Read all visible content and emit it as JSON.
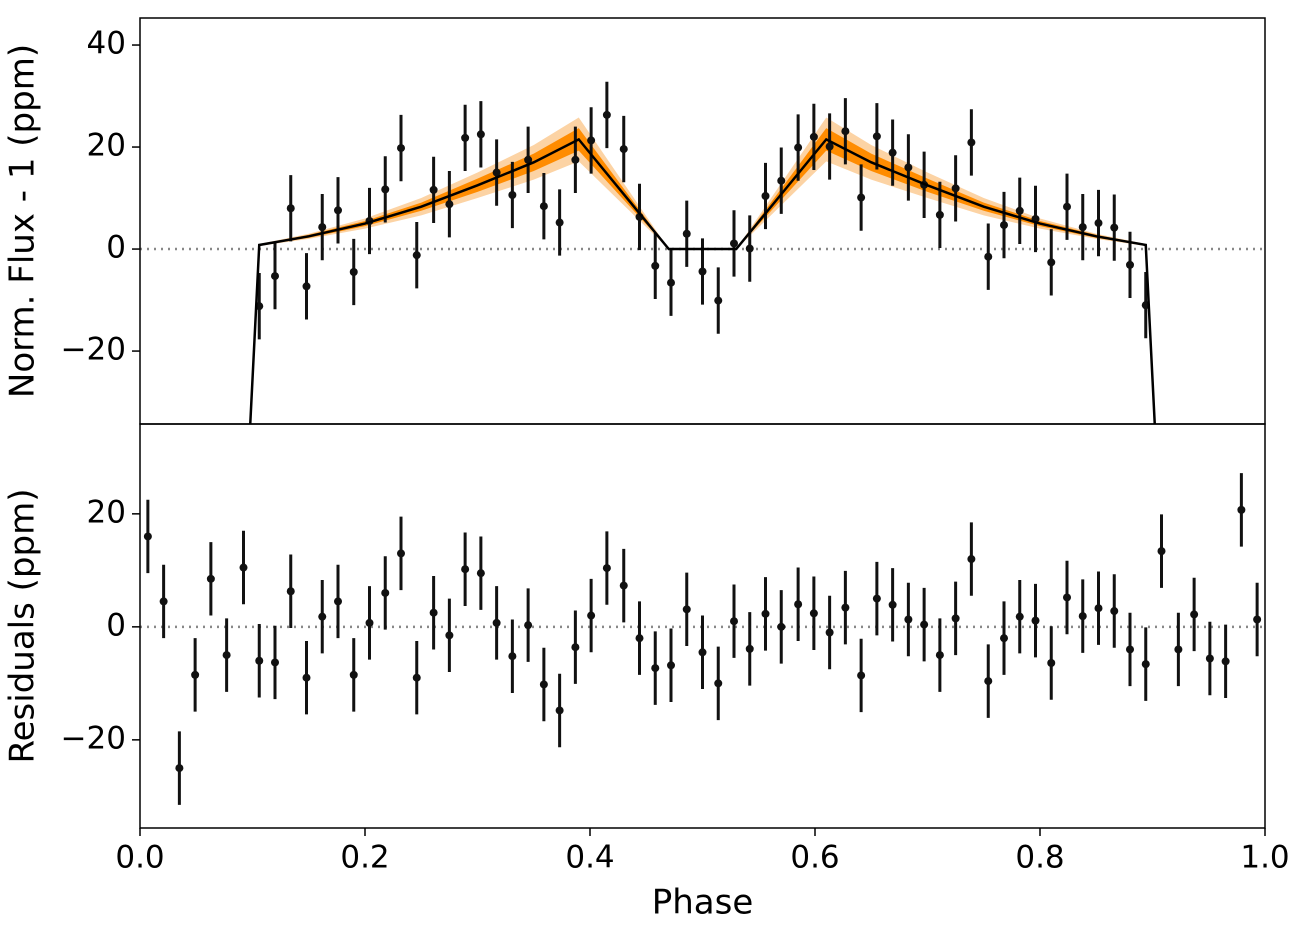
{
  "chart_data": [
    {
      "type": "errorbar",
      "ylabel": "Norm. Flux - 1 (ppm)",
      "xlim": [
        0,
        1
      ],
      "ylim": [
        -34.3,
        45.3
      ],
      "yticks": [
        {
          "value": -20,
          "label": "−20"
        },
        0,
        20,
        40
      ],
      "hline": 0,
      "series": [
        {
          "color": "#111111",
          "error": 6.5,
          "x": [
            0.106,
            0.12,
            0.134,
            0.148,
            0.162,
            0.176,
            0.19,
            0.204,
            0.218,
            0.232,
            0.246,
            0.261,
            0.275,
            0.289,
            0.303,
            0.317,
            0.331,
            0.345,
            0.359,
            0.373,
            0.387,
            0.401,
            0.415,
            0.43,
            0.444,
            0.458,
            0.472,
            0.486,
            0.5,
            0.514,
            0.528,
            0.542,
            0.556,
            0.57,
            0.585,
            0.599,
            0.613,
            0.627,
            0.641,
            0.655,
            0.669,
            0.683,
            0.697,
            0.711,
            0.725,
            0.739,
            0.754,
            0.768,
            0.782,
            0.796,
            0.81,
            0.824,
            0.838,
            0.852,
            0.866,
            0.88,
            0.894
          ],
          "values": [
            -11.2,
            -5.3,
            8,
            -7.3,
            4.3,
            7.6,
            -4.5,
            5.5,
            11.7,
            19.8,
            -1.2,
            11.6,
            8.8,
            21.8,
            22.5,
            15,
            10.6,
            17.5,
            8.4,
            5.2,
            17.5,
            21.3,
            26.3,
            19.6,
            6.3,
            -3.3,
            -6.6,
            3,
            -4.4,
            -10.1,
            1.1,
            0.1,
            10.4,
            13.4,
            19.9,
            22,
            20.1,
            23.1,
            10.1,
            22.1,
            18.9,
            16,
            12.6,
            6.7,
            11.9,
            20.9,
            -1.5,
            4.7,
            7.5,
            5.9,
            -2.6,
            8.3,
            4.3,
            5.1,
            4.2,
            -3.1,
            -11
          ]
        }
      ],
      "model": {
        "color": "#000000",
        "x": [
          0.098,
          0.106,
          0.15,
          0.2,
          0.25,
          0.3,
          0.35,
          0.39,
          0.47,
          0.53,
          0.61,
          0.65,
          0.7,
          0.75,
          0.8,
          0.85,
          0.894,
          0.902
        ],
        "values": [
          -34.3,
          0.8,
          2.5,
          5,
          8.3,
          12.5,
          17,
          21.5,
          0,
          0,
          21.5,
          17,
          12.5,
          8.3,
          5,
          2.5,
          0.8,
          -34.3
        ],
        "bands": [
          {
            "color": "#fcd3a4",
            "lower": [
              -34.3,
              0.6,
              2,
              4,
              6.6,
              10,
              13.6,
              17.2,
              0,
              0,
              17.2,
              13.6,
              10,
              6.6,
              4,
              2,
              0.6,
              -34.3
            ],
            "upper": [
              -34.3,
              1,
              3,
              6,
              10,
              15,
              20.4,
              25.8,
              0,
              0,
              25.8,
              20.4,
              15,
              10,
              6,
              3,
              1,
              -34.3
            ]
          },
          {
            "color": "#ff8c00",
            "lower": [
              -34.3,
              0.7,
              2.2,
              4.5,
              7.5,
              11.2,
              15.3,
              19.3,
              0,
              0,
              19.3,
              15.3,
              11.2,
              7.5,
              4.5,
              2.2,
              0.7,
              -34.3
            ],
            "upper": [
              -34.3,
              0.9,
              2.8,
              5.5,
              9.1,
              13.8,
              18.7,
              23.7,
              0,
              0,
              23.7,
              18.7,
              13.8,
              9.1,
              5.5,
              2.8,
              0.9,
              -34.3
            ]
          }
        ]
      }
    },
    {
      "type": "errorbar",
      "ylabel": "Residuals (ppm)",
      "xlabel": "Phase",
      "xlim": [
        0,
        1
      ],
      "ylim": [
        -35.6,
        35.9
      ],
      "xticks": [
        {
          "value": 0,
          "label": "0.0"
        },
        {
          "value": 0.2,
          "label": "0.2"
        },
        {
          "value": 0.4,
          "label": "0.4"
        },
        {
          "value": 0.6,
          "label": "0.6"
        },
        {
          "value": 0.8,
          "label": "0.8"
        },
        {
          "value": 1,
          "label": "1.0"
        }
      ],
      "yticks": [
        {
          "value": -20,
          "label": "−20"
        },
        0,
        20
      ],
      "hline": 0,
      "series": [
        {
          "color": "#111111",
          "error": 6.5,
          "x": [
            0.007,
            0.021,
            0.035,
            0.049,
            0.063,
            0.077,
            0.092,
            0.106,
            0.12,
            0.134,
            0.148,
            0.162,
            0.176,
            0.19,
            0.204,
            0.218,
            0.232,
            0.246,
            0.261,
            0.275,
            0.289,
            0.303,
            0.317,
            0.331,
            0.345,
            0.359,
            0.373,
            0.387,
            0.401,
            0.415,
            0.43,
            0.444,
            0.458,
            0.472,
            0.486,
            0.5,
            0.514,
            0.528,
            0.542,
            0.556,
            0.57,
            0.585,
            0.599,
            0.613,
            0.627,
            0.641,
            0.655,
            0.669,
            0.683,
            0.697,
            0.711,
            0.725,
            0.739,
            0.754,
            0.768,
            0.782,
            0.796,
            0.81,
            0.824,
            0.838,
            0.852,
            0.866,
            0.88,
            0.894,
            0.908,
            0.923,
            0.937,
            0.951,
            0.965,
            0.979,
            0.993
          ],
          "values": [
            16,
            4.5,
            -25,
            -8.5,
            8.5,
            -5,
            10.5,
            -6,
            -6.3,
            6.3,
            -9,
            1.8,
            4.5,
            -8.5,
            0.7,
            6,
            13,
            -9,
            2.5,
            -1.5,
            10.2,
            9.5,
            0.7,
            -5.2,
            0.3,
            -10.2,
            -14.8,
            -3.6,
            2,
            10.4,
            7.3,
            -2,
            -7.3,
            -6.8,
            3.1,
            -4.5,
            -10,
            1,
            -3.9,
            2.3,
            0,
            4,
            2.4,
            -1,
            3.4,
            -8.6,
            5,
            3.9,
            1.3,
            0.4,
            -5,
            1.5,
            12,
            -9.6,
            -2,
            1.8,
            1.1,
            -6.4,
            5.2,
            1.9,
            3.3,
            2.8,
            -4,
            -6.6,
            13.4,
            -4,
            2.2,
            -5.6,
            -6.1,
            20.7,
            1.3
          ]
        }
      ]
    }
  ]
}
